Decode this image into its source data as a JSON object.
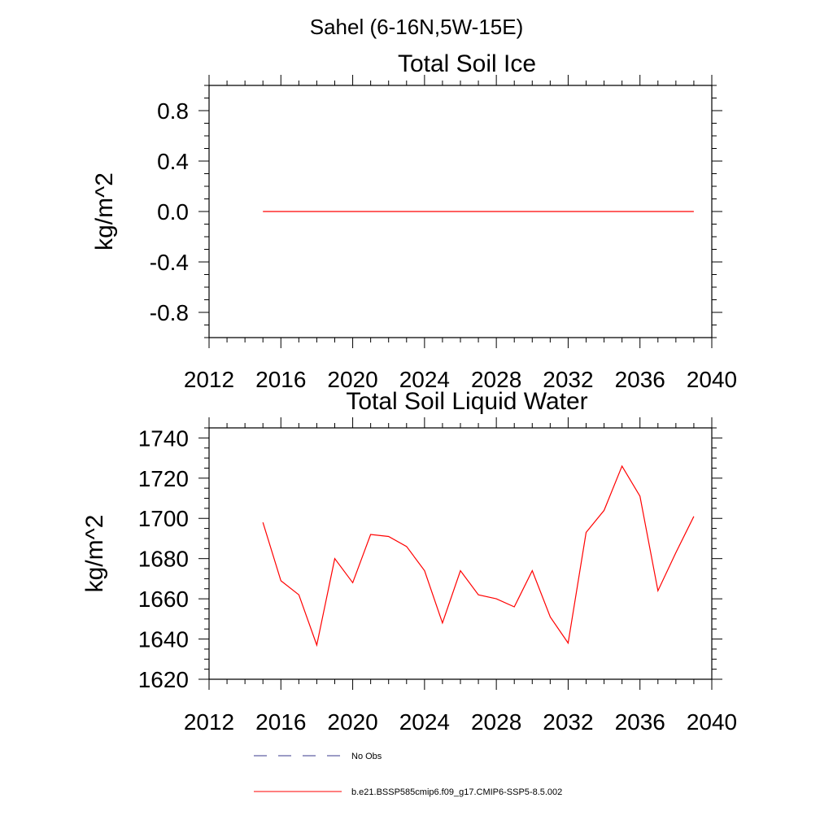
{
  "figure": {
    "title": "Sahel (6-16N,5W-15E)"
  },
  "legend": {
    "items": [
      {
        "label": "No Obs",
        "color": "#3a3a8c",
        "dash": true
      },
      {
        "label": "b.e21.BSSP585cmip6.f09_g17.CMIP6-SSP5-8.5.002",
        "color": "#ff0000",
        "dash": false
      }
    ]
  },
  "chart_data": [
    {
      "type": "line",
      "title": "Total Soil Ice",
      "xlabel": "",
      "ylabel": "kg/m^2",
      "xlim": [
        2012,
        2040
      ],
      "ylim": [
        -1.0,
        1.0
      ],
      "x_ticks": [
        "2012",
        "2016",
        "2020",
        "2024",
        "2028",
        "2032",
        "2036",
        "2040"
      ],
      "y_ticks": [
        "0.8",
        "0.4",
        "0.0",
        "-0.4",
        "-0.8"
      ],
      "grid": false,
      "series": [
        {
          "name": "b.e21.BSSP585cmip6.f09_g17.CMIP6-SSP5-8.5.002",
          "color": "#ff0000",
          "x": [
            2015,
            2016,
            2017,
            2018,
            2019,
            2020,
            2021,
            2022,
            2023,
            2024,
            2025,
            2026,
            2027,
            2028,
            2029,
            2030,
            2031,
            2032,
            2033,
            2034,
            2035,
            2036,
            2037,
            2038,
            2039
          ],
          "values": [
            0,
            0,
            0,
            0,
            0,
            0,
            0,
            0,
            0,
            0,
            0,
            0,
            0,
            0,
            0,
            0,
            0,
            0,
            0,
            0,
            0,
            0,
            0,
            0,
            0
          ]
        }
      ]
    },
    {
      "type": "line",
      "title": "Total Soil Liquid Water",
      "xlabel": "",
      "ylabel": "kg/m^2",
      "xlim": [
        2012,
        2040
      ],
      "ylim": [
        1620,
        1745
      ],
      "x_ticks": [
        "2012",
        "2016",
        "2020",
        "2024",
        "2028",
        "2032",
        "2036",
        "2040"
      ],
      "y_ticks": [
        "1740",
        "1720",
        "1700",
        "1680",
        "1660",
        "1640",
        "1620"
      ],
      "grid": false,
      "series": [
        {
          "name": "b.e21.BSSP585cmip6.f09_g17.CMIP6-SSP5-8.5.002",
          "color": "#ff0000",
          "x": [
            2015,
            2016,
            2017,
            2018,
            2019,
            2020,
            2021,
            2022,
            2023,
            2024,
            2025,
            2026,
            2027,
            2028,
            2029,
            2030,
            2031,
            2032,
            2033,
            2034,
            2035,
            2036,
            2037,
            2038,
            2039
          ],
          "values": [
            1698,
            1669,
            1662,
            1637,
            1680,
            1668,
            1692,
            1691,
            1686,
            1674,
            1648,
            1674,
            1662,
            1660,
            1656,
            1674,
            1651,
            1638,
            1693,
            1704,
            1726,
            1711,
            1664,
            1683,
            1701
          ]
        }
      ]
    }
  ]
}
